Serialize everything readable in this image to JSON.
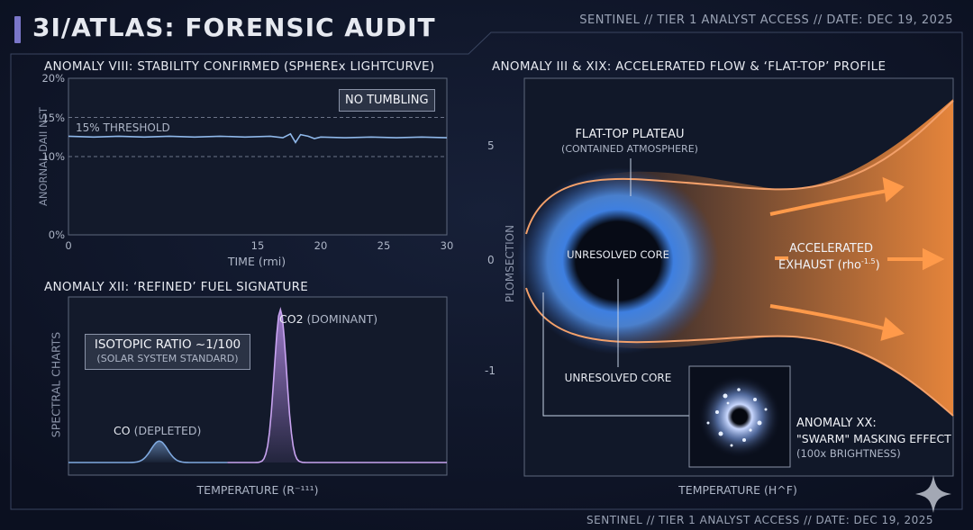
{
  "header": {
    "title": "3I/ATLAS: FORENSIC AUDIT",
    "meta": "SENTINEL // TIER 1 ANALYST ACCESS // DATE: DEC 19, 2025"
  },
  "footer": {
    "meta": "SENTINEL // TIER 1 ANALYST ACCESS // DATE: DEC 19, 2025"
  },
  "colors": {
    "background": "#0d1321",
    "accent_purple": "#7a76c9",
    "lightcurve_blue": "#8fb8ea",
    "co_blue": "#7fa9e0",
    "co2_purple": "#b58be6",
    "exhaust_orange": "#f08a3c",
    "core_blue": "#4f8fe8"
  },
  "icons": {
    "corner": "sparkle-icon"
  },
  "chart_data": [
    {
      "type": "line",
      "title": "ANOMALY VIII: STABILITY CONFIRMED (SPHEREx LIGHTCURVE)",
      "xlabel": "TIME (rmi)",
      "ylabel": "ANORNAL DAII NST",
      "xlim": [
        0,
        30
      ],
      "ylim": [
        0,
        20
      ],
      "x_ticks": [
        "0",
        "15",
        "20",
        "25",
        "30"
      ],
      "x_tick_values": [
        0,
        15,
        20,
        25,
        30
      ],
      "y_ticks": [
        "0%",
        "10%",
        "15%",
        "20%"
      ],
      "y_tick_values": [
        0,
        10,
        15,
        20
      ],
      "threshold": {
        "value": 15,
        "label": "15% THRESHOLD"
      },
      "reference_line": 10,
      "badge": "NO TUMBLING",
      "series": [
        {
          "x": [
            0,
            2,
            4,
            6,
            8,
            10,
            12,
            14,
            16,
            17,
            17.6,
            18,
            18.4,
            19,
            19.5,
            20,
            22,
            24,
            26,
            28,
            30
          ],
          "y": [
            12.6,
            12.5,
            12.6,
            12.5,
            12.6,
            12.5,
            12.6,
            12.5,
            12.6,
            12.4,
            12.9,
            11.8,
            12.8,
            12.6,
            12.3,
            12.5,
            12.4,
            12.5,
            12.4,
            12.5,
            12.4
          ]
        }
      ]
    },
    {
      "type": "line",
      "title": "ANOMALY XII: ‘REFINED’ FUEL SIGNATURE",
      "xlabel": "TEMPERATURE (R⁻¹¹¹)",
      "ylabel": "SPECTRAL CHARTS",
      "ratio_label": "ISOTOPIC RATIO ~1/100",
      "ratio_sub": "(SOLAR SYSTEM STANDARD)",
      "peaks": [
        {
          "name": "CO",
          "note": "(DEPLETED)",
          "center": 0.24,
          "height": 0.14,
          "width": 0.022
        },
        {
          "name": "CO2",
          "note": "(DOMINANT)",
          "center": 0.56,
          "height": 1.0,
          "width": 0.016
        }
      ]
    },
    {
      "type": "area",
      "title": "ANOMALY III & XIX: ACCELERATED FLOW & ‘FLAT-TOP’ PROFILE",
      "xlabel": "TEMPERATURE (H^F)",
      "ylabel": "PLOMSECTION",
      "y_ticks": [
        "5",
        "0",
        "-1"
      ],
      "plateau_label": "FLAT-TOP PLATEAU",
      "plateau_sub": "(CONTAINED ATMOSPHERE)",
      "core_label": "UNRESOLVED CORE",
      "core_label_lower": "UNRESOLVED CORE",
      "exhaust_label": "ACCELERATED",
      "exhaust_label_2": "EXHAUST (rho",
      "exhaust_exponent": "-1.5",
      "exhaust_close": ")",
      "inset_title": "ANOMALY XX:",
      "inset_line2": "\"SWARM\" MASKING EFFECT",
      "inset_line3": "(100x BRIGHTNESS)"
    }
  ]
}
